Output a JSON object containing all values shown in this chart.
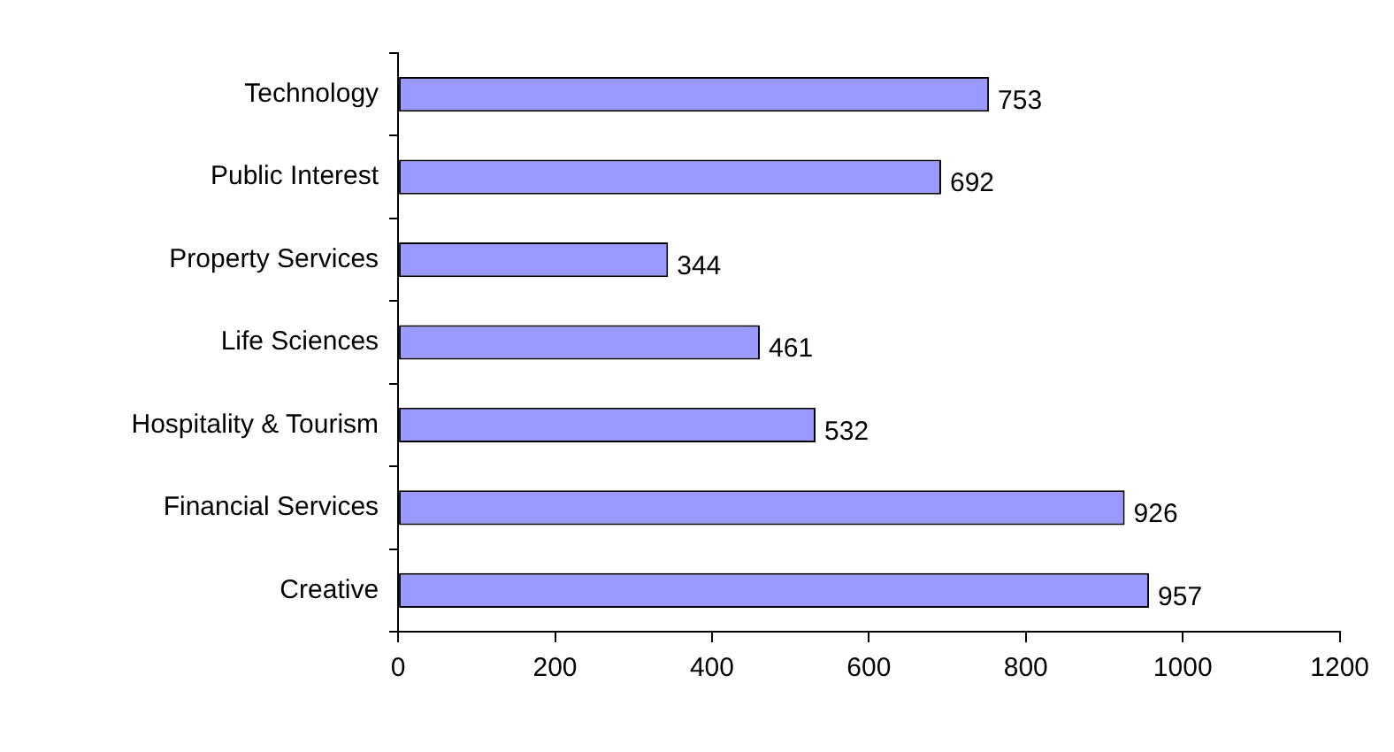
{
  "chart_data": {
    "type": "bar",
    "orientation": "horizontal",
    "categories": [
      "Technology",
      "Public Interest",
      "Property Services",
      "Life Sciences",
      "Hospitality & Tourism",
      "Financial Services",
      "Creative"
    ],
    "values": [
      753,
      692,
      344,
      461,
      532,
      926,
      957
    ],
    "color": "#9999ff",
    "xlim": [
      0,
      1200
    ],
    "xticks": [
      0,
      200,
      400,
      600,
      800,
      1000,
      1200
    ],
    "grid": false,
    "legend": false,
    "data_labels": true
  }
}
